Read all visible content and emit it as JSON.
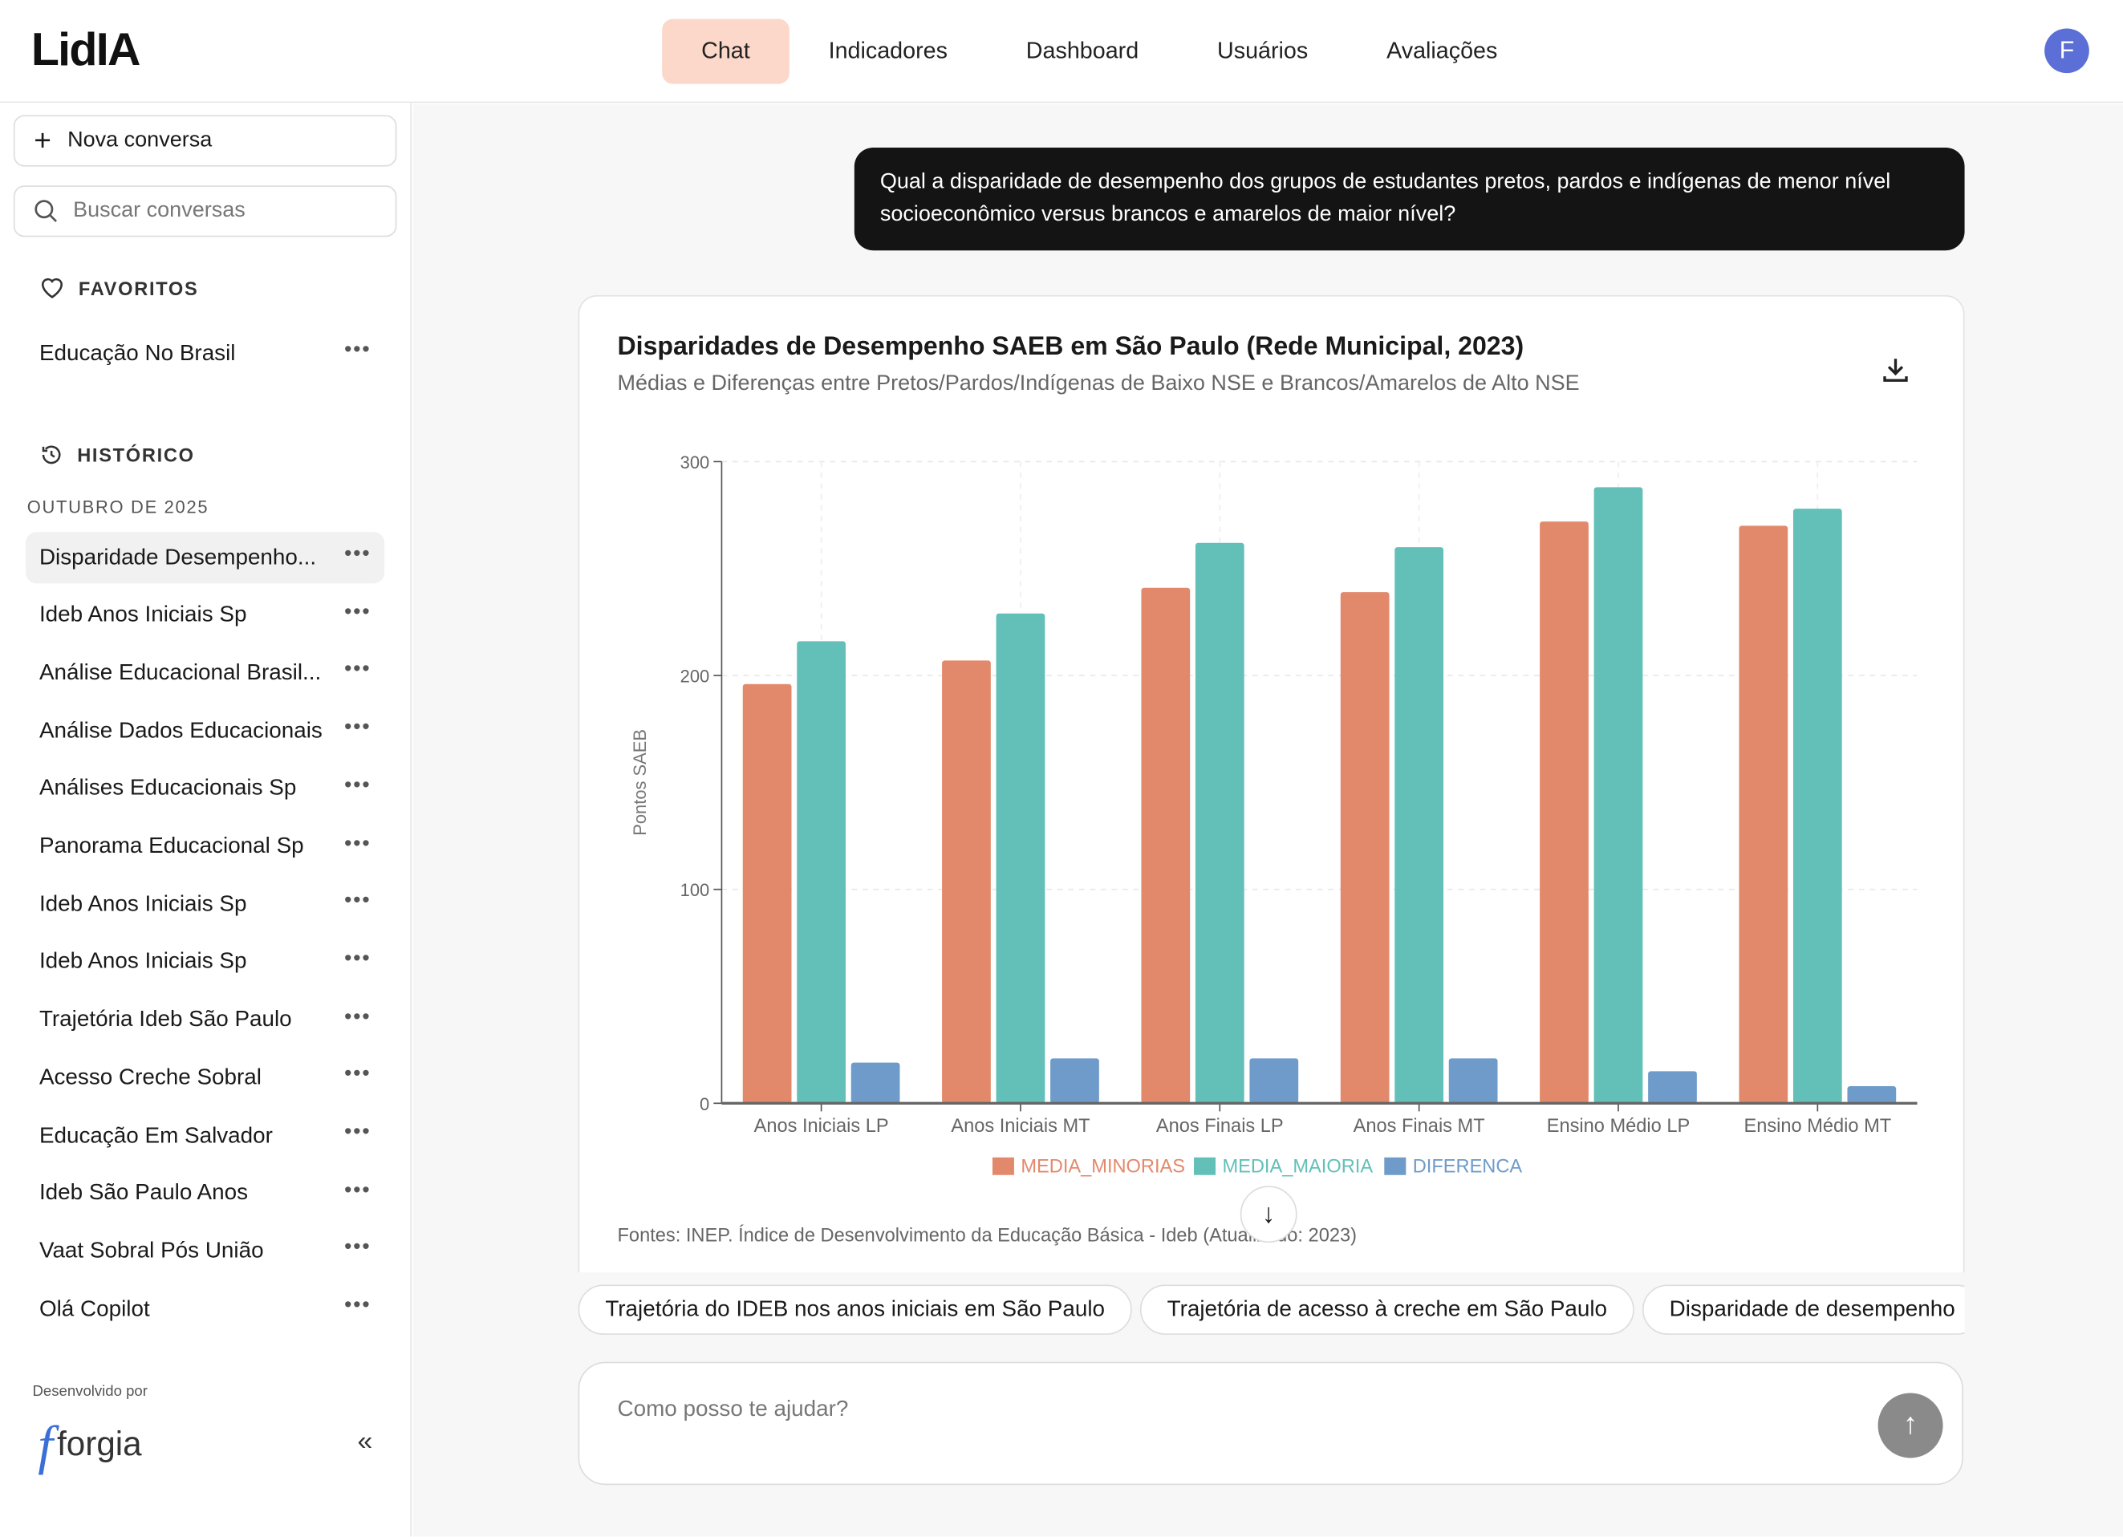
{
  "header": {
    "logo": "LidIA",
    "nav": [
      "Chat",
      "Indicadores",
      "Dashboard",
      "Usuários",
      "Avaliações"
    ],
    "active": "Chat",
    "avatar": "F"
  },
  "sidebar": {
    "new_chat": "Nova conversa",
    "search_placeholder": "Buscar conversas",
    "favorites_title": "FAVORITOS",
    "favorites": [
      "Educação No Brasil"
    ],
    "history_title": "HISTÓRICO",
    "month": "OUTUBRO DE 2025",
    "history": [
      "Disparidade Desempenho...",
      "Ideb Anos Iniciais Sp",
      "Análise Educacional Brasil...",
      "Análise Dados Educacionais",
      "Análises Educacionais Sp",
      "Panorama Educacional Sp",
      "Ideb Anos Iniciais Sp",
      "Ideb Anos Iniciais Sp",
      "Trajetória Ideb São Paulo",
      "Acesso Creche Sobral",
      "Educação Em Salvador",
      "Ideb São Paulo Anos",
      "Vaat Sobral Pós União",
      "Olá Copilot"
    ],
    "developed_by": "Desenvolvido por",
    "brand": "forgia",
    "more": "•••",
    "collapse": "«"
  },
  "chat": {
    "question": "Qual a disparidade de desempenho dos grupos de estudantes pretos, pardos e indígenas de menor nível socioeconômico versus brancos e amarelos de maior nível?",
    "source": "Fontes: INEP. Índice de Desenvolvimento da Educação Básica - Ideb (Atualizado: 2023)",
    "suggestions": [
      "Trajetória do IDEB nos anos iniciais em São Paulo",
      "Trajetória de acesso à creche em São Paulo",
      "Disparidade de desempenho"
    ],
    "input_placeholder": "Como posso te ajudar?"
  },
  "chart_data": {
    "type": "bar",
    "title": "Disparidades de Desempenho SAEB em São Paulo (Rede Municipal, 2023)",
    "subtitle": "Médias e Diferenças entre Pretos/Pardos/Indígenas de Baixo NSE e Brancos/Amarelos de Alto NSE",
    "xlabel": "",
    "ylabel": "Pontos SAEB",
    "ylim": [
      0,
      300
    ],
    "yticks": [
      0,
      100,
      200,
      300
    ],
    "grid": true,
    "legend": "bottom",
    "categories": [
      "Anos Iniciais LP",
      "Anos Iniciais MT",
      "Anos Finais LP",
      "Anos Finais MT",
      "Ensino Médio LP",
      "Ensino Médio MT"
    ],
    "series": [
      {
        "name": "MEDIA_MINORIAS",
        "color": "#e3896b",
        "values": [
          196,
          207,
          241,
          239,
          272,
          270
        ]
      },
      {
        "name": "MEDIA_MAIORIA",
        "color": "#62c0b9",
        "values": [
          216,
          229,
          262,
          260,
          288,
          278
        ]
      },
      {
        "name": "DIFERENCA",
        "color": "#6f9bca",
        "values": [
          19,
          21,
          21,
          21,
          15,
          8
        ]
      }
    ]
  }
}
